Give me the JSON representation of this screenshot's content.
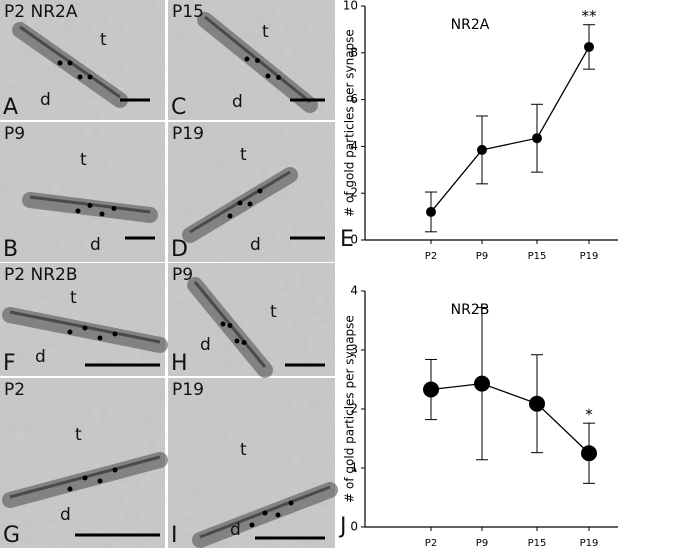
{
  "panels": [
    {
      "corner": "P2 NR2A",
      "t": "t",
      "d": "d",
      "letter": "A"
    },
    {
      "corner": "P15",
      "t": "t",
      "d": "d",
      "letter": "C"
    },
    {
      "corner": "P9",
      "t": "t",
      "d": "d",
      "letter": "B"
    },
    {
      "corner": "P19",
      "t": "t",
      "d": "d",
      "letter": "D"
    },
    {
      "corner": "P2 NR2B",
      "t": "t",
      "d": "d",
      "letter": "F"
    },
    {
      "corner": "P9",
      "t": "t",
      "d": "d",
      "letter": "H"
    },
    {
      "corner": "P2",
      "t": "t",
      "d": "d",
      "letter": "G"
    },
    {
      "corner": "P19",
      "t": "t",
      "d": "d",
      "letter": "I"
    }
  ],
  "chart_data": [
    {
      "type": "line",
      "title": "NR2A",
      "panel_label": "E",
      "ylabel": "# of gold particles per synapse",
      "categories": [
        "P2",
        "P9",
        "P15",
        "P19"
      ],
      "values": [
        1.2,
        3.85,
        4.35,
        8.25
      ],
      "errors": [
        0.85,
        1.45,
        1.45,
        0.95
      ],
      "annotation": "**",
      "color": "#000000",
      "ylim": [
        0,
        10
      ],
      "yticks": [
        0,
        2,
        4,
        6,
        8,
        10
      ]
    },
    {
      "type": "line",
      "title": "NR2B",
      "panel_label": "J",
      "ylabel": "# of gold particles per synapse",
      "categories": [
        "P2",
        "P9",
        "P15",
        "P19"
      ],
      "values": [
        2.33,
        2.43,
        2.09,
        1.25
      ],
      "errors": [
        0.51,
        1.29,
        0.83,
        0.51
      ],
      "annotation": "*",
      "color": "#000000",
      "ylim": [
        0,
        4
      ],
      "yticks": [
        0,
        1,
        2,
        3,
        4
      ]
    }
  ]
}
